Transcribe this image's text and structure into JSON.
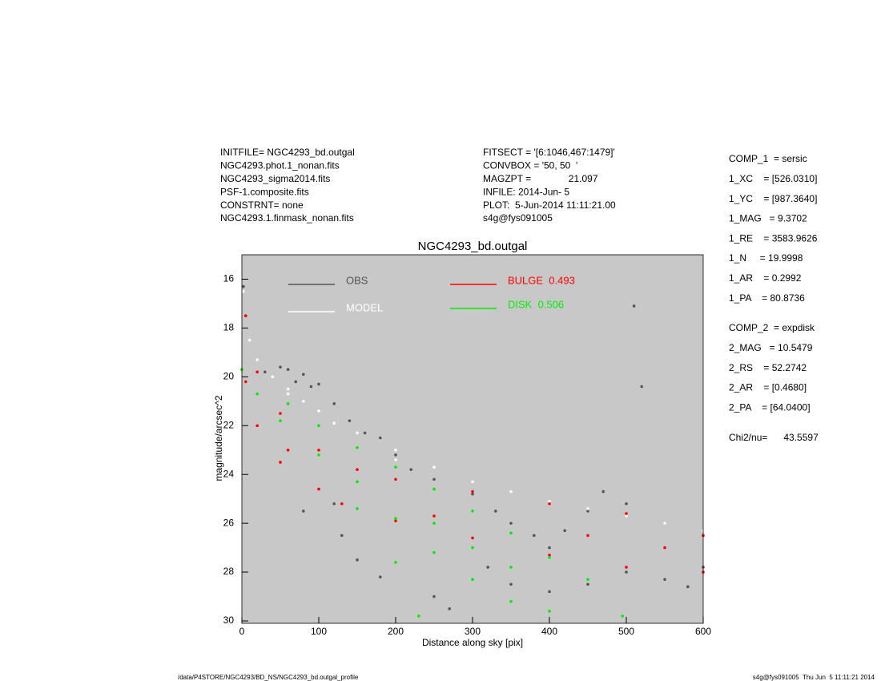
{
  "header": {
    "left": [
      "INITFILE= NGC4293_bd.outgal",
      "NGC4293.phot.1_nonan.fits",
      "NGC4293_sigma2014.fits",
      "PSF-1.composite.fits",
      "CONSTRNT= none",
      "NGC4293.1.finmask_nonan.fits"
    ],
    "middle": [
      "FITSECT = '[6:1046,467:1479]'",
      "CONVBOX = '50, 50  '",
      "MAGZPT =              21.097",
      "INFILE: 2014-Jun- 5",
      "PLOT:  5-Jun-2014 11:11:21.00",
      "s4g@fys091005"
    ]
  },
  "params": {
    "comp1": [
      "COMP_1  = sersic",
      "1_XC    = [526.0310]",
      "1_YC    = [987.3640]",
      "1_MAG   = 9.3702",
      "1_RE    = 3583.9626",
      "1_N     = 19.9998",
      "1_AR    = 0.2992",
      "1_PA    = 80.8736"
    ],
    "comp2": [
      "COMP_2  = expdisk",
      "2_MAG   = 10.5479",
      "2_RS    = 52.2742",
      "2_AR    = [0.4680]",
      "2_PA    = [64.0400]"
    ],
    "chi2": "Chi2/nu=      43.5597"
  },
  "footer": {
    "left": "/data/P4STORE/NGC4293/BD_NS/NGC4293_bd.outgal_profile",
    "right": "s4g@fys091005  Thu Jun  5 11:11:21 2014"
  },
  "chart_data": {
    "type": "scatter",
    "title": "NGC4293_bd.outgal",
    "x_label": "Distance along sky [pix]",
    "y_label": "magnitude/arcsec^2",
    "xlim": [
      0,
      600
    ],
    "ylim": [
      30,
      15
    ],
    "xticks": [
      0,
      100,
      200,
      300,
      400,
      500,
      600
    ],
    "yticks": [
      16,
      18,
      20,
      22,
      24,
      26,
      28,
      30
    ],
    "background": "#c8c8c8",
    "series": [
      {
        "name": "OBS",
        "color": "#555555",
        "x": [
          2,
          5,
          30,
          50,
          60,
          70,
          80,
          90,
          100,
          120,
          140,
          160,
          180,
          200,
          220,
          250,
          300,
          330,
          350,
          380,
          400,
          420,
          450,
          470,
          500,
          520,
          510,
          130,
          150,
          180,
          250,
          270,
          320,
          350,
          400,
          450,
          500,
          550,
          580,
          600,
          80,
          120
        ],
        "values": [
          16.3,
          17.5,
          19.8,
          19.6,
          19.7,
          20.2,
          19.9,
          20.4,
          20.3,
          21.1,
          21.8,
          22.3,
          22.5,
          23.2,
          23.8,
          24.2,
          24.8,
          25.5,
          26.0,
          26.5,
          27.0,
          26.3,
          25.5,
          24.7,
          25.2,
          20.4,
          17.1,
          26.5,
          27.5,
          28.2,
          29.0,
          29.5,
          27.8,
          28.5,
          28.8,
          28.5,
          28.0,
          28.3,
          28.6,
          27.8,
          25.5,
          25.2
        ]
      },
      {
        "name": "MODEL",
        "color": "#ffffff",
        "x": [
          2,
          10,
          20,
          40,
          60,
          80,
          100,
          150,
          200,
          250,
          300,
          350,
          400,
          450,
          500,
          550,
          600,
          60,
          120,
          200
        ],
        "values": [
          16.5,
          18.5,
          19.3,
          20.0,
          20.5,
          21.0,
          21.4,
          22.3,
          23.0,
          23.7,
          24.3,
          24.7,
          25.1,
          25.4,
          25.7,
          26.0,
          26.3,
          20.7,
          21.9,
          23.4
        ]
      },
      {
        "name": "BULGE  0.493",
        "color": "#ff0000",
        "x": [
          5,
          20,
          50,
          100,
          150,
          200,
          300,
          400,
          500,
          600,
          5,
          20,
          50,
          100,
          130,
          200,
          300,
          400,
          500,
          600,
          60,
          250,
          450,
          550
        ],
        "values": [
          17.5,
          19.8,
          21.5,
          23.0,
          23.8,
          24.2,
          24.7,
          25.2,
          25.6,
          26.5,
          20.2,
          22.0,
          23.5,
          24.6,
          25.2,
          25.9,
          26.6,
          27.3,
          27.8,
          28.0,
          23.0,
          25.7,
          26.5,
          27.0
        ]
      },
      {
        "name": "DISK  0.506",
        "color": "#00ee00",
        "x": [
          0,
          20,
          50,
          100,
          150,
          200,
          230,
          60,
          100,
          150,
          200,
          250,
          300,
          350,
          400,
          450,
          495,
          150,
          200,
          250,
          300,
          350,
          400,
          300,
          350,
          250
        ],
        "values": [
          19.7,
          20.7,
          21.8,
          23.2,
          25.4,
          27.6,
          29.8,
          21.1,
          22.0,
          22.9,
          23.7,
          24.6,
          25.5,
          26.4,
          27.4,
          28.3,
          29.8,
          24.3,
          25.8,
          27.2,
          28.3,
          29.2,
          29.6,
          27.0,
          27.8,
          26.0
        ]
      }
    ]
  }
}
